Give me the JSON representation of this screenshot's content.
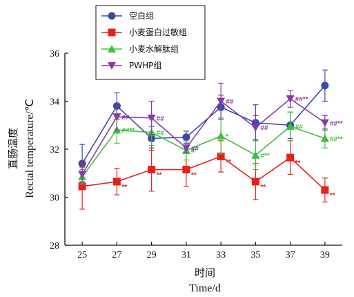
{
  "chart_data": {
    "type": "line",
    "xlabel_cn": "时间",
    "xlabel_en": "Time/d",
    "ylabel_cn": "直肠温度",
    "ylabel_en": "Rectal temperature/℃",
    "x": [
      25,
      27,
      29,
      31,
      33,
      35,
      37,
      39
    ],
    "xlim": [
      24,
      40
    ],
    "ylim": [
      28,
      36
    ],
    "yticks": [
      28,
      30,
      32,
      34,
      36
    ],
    "legend_position": "top-left",
    "series": [
      {
        "name": "空白组",
        "color": "#3a4aa8",
        "marker": "circle",
        "values": [
          31.4,
          33.8,
          32.45,
          32.5,
          33.75,
          33.1,
          33.0,
          34.65
        ],
        "errors": [
          0.8,
          0.55,
          0.5,
          0.25,
          0.5,
          0.75,
          0.55,
          0.65
        ],
        "annotations": [
          "",
          "",
          "",
          "",
          "",
          "",
          "",
          ""
        ]
      },
      {
        "name": "小麦蛋白过敏组",
        "color": "#e8201c",
        "marker": "square",
        "values": [
          30.45,
          30.65,
          31.15,
          31.15,
          31.7,
          30.65,
          31.65,
          30.3
        ],
        "errors": [
          0.95,
          0.55,
          0.9,
          0.7,
          0.65,
          0.75,
          0.7,
          0.5
        ],
        "annotations": [
          "",
          "**",
          "**",
          "**",
          "**",
          "**",
          "**",
          "**"
        ]
      },
      {
        "name": "小麦水解肽组",
        "color": "#3cbf3c",
        "marker": "triangle",
        "values": [
          30.85,
          32.8,
          32.7,
          31.95,
          32.55,
          31.75,
          32.95,
          32.45
        ],
        "errors": [
          0.3,
          0.55,
          0.55,
          0.4,
          0.75,
          0.6,
          0.6,
          0.4
        ],
        "annotations": [
          "",
          "##**",
          "##",
          "#",
          "*",
          "#**",
          "##",
          "##**"
        ]
      },
      {
        "name": "PWHP组",
        "color": "#8a3aa8",
        "marker": "triangle-down",
        "values": [
          30.95,
          33.35,
          33.3,
          32.05,
          34.0,
          32.9,
          34.1,
          33.1
        ],
        "errors": [
          0.3,
          0.55,
          0.7,
          0.2,
          0.75,
          0.5,
          0.35,
          0.3
        ],
        "annotations": [
          "",
          "##",
          "##",
          "##",
          "##",
          "##",
          "##**",
          "##**"
        ]
      }
    ]
  }
}
